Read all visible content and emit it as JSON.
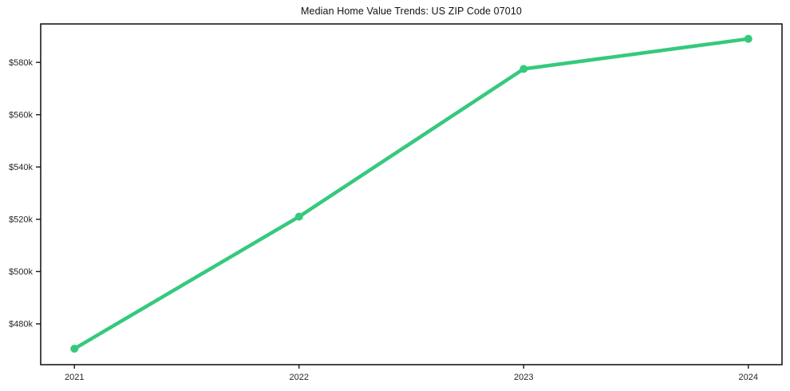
{
  "figure": {
    "background": "#ffffff"
  },
  "chart_data": {
    "type": "line",
    "title": "Median Home Value Trends: US ZIP Code 07010",
    "x": [
      2021,
      2022,
      2023,
      2024
    ],
    "x_tick_labels": [
      "2021",
      "2022",
      "2023",
      "2024"
    ],
    "series": [
      {
        "name": "Median Home Value",
        "values": [
          470500,
          521000,
          577500,
          589000
        ],
        "color": "#35c97d",
        "marker": "circle",
        "line_width": 4.5,
        "marker_radius": 5
      }
    ],
    "y_ticks": [
      {
        "value": 480000,
        "label": "$480k"
      },
      {
        "value": 500000,
        "label": "$500k"
      },
      {
        "value": 520000,
        "label": "$520k"
      },
      {
        "value": 540000,
        "label": "$540k"
      },
      {
        "value": 560000,
        "label": "$560k"
      },
      {
        "value": 580000,
        "label": "$580k"
      }
    ],
    "xlim": [
      2020.85,
      2024.15
    ],
    "ylim": [
      464400,
      594700
    ],
    "xlabel": "",
    "ylabel": "",
    "grid": false,
    "legend": null,
    "frame_color": "#1a1a1a",
    "tick_text_color": "#262626"
  }
}
